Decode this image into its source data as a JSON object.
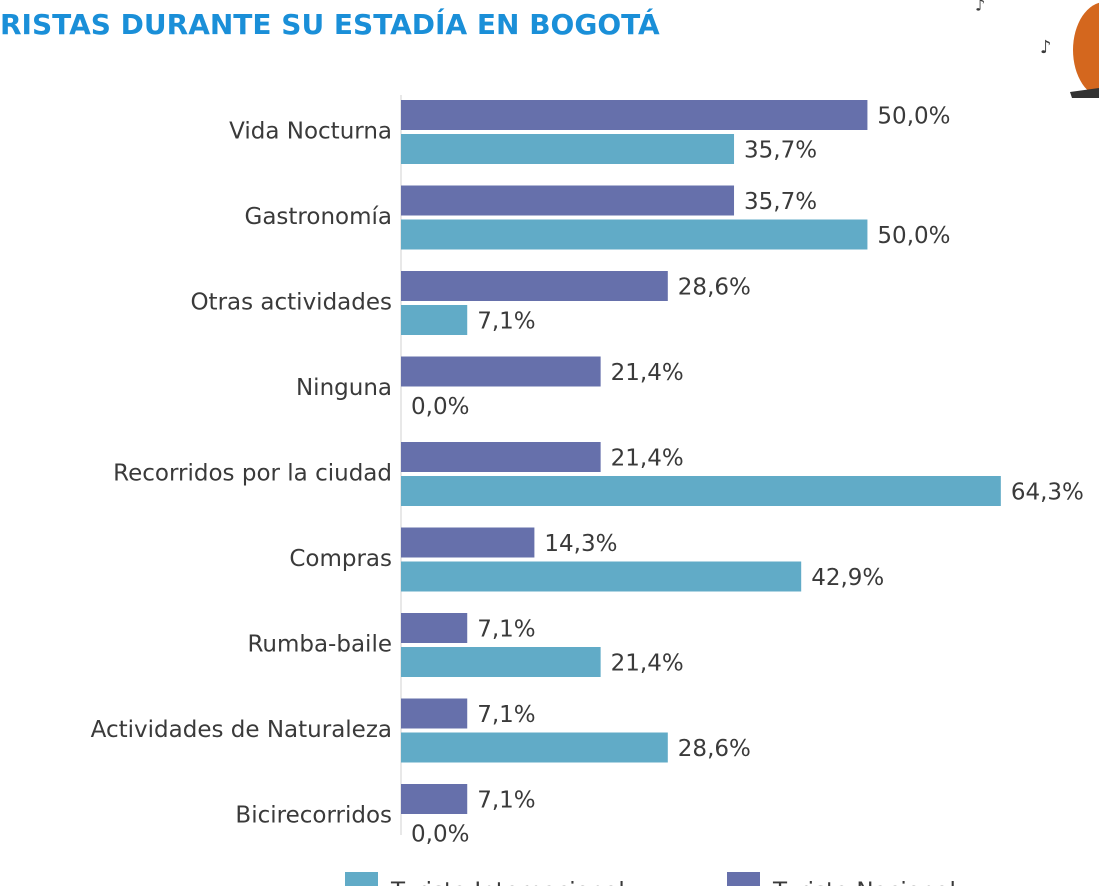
{
  "chart_data": {
    "type": "bar",
    "orientation": "horizontal",
    "title": "RISTAS DURANTE SU ESTADÍA EN BOGOTÁ",
    "categories": [
      "Vida Nocturna",
      "Gastronomía",
      "Otras actividades",
      "Ninguna",
      "Recorridos por la ciudad",
      "Compras",
      "Rumba-baile",
      "Actividades de Naturaleza",
      "Bicirecorridos"
    ],
    "series": [
      {
        "name": "Turista Internacional",
        "color": "#61abc7",
        "values": [
          35.7,
          50.0,
          7.1,
          0.0,
          64.3,
          42.9,
          21.4,
          28.6,
          0.0
        ],
        "value_labels": [
          "35,7%",
          "50,0%",
          "7,1%",
          "0,0%",
          "64,3%",
          "42,9%",
          "21,4%",
          "28,6%",
          "0,0%"
        ]
      },
      {
        "name": "Turista Nacional",
        "color": "#6670ab",
        "values": [
          50.0,
          35.7,
          28.6,
          21.4,
          21.4,
          14.3,
          7.1,
          7.1,
          7.1
        ],
        "value_labels": [
          "50,0%",
          "35,7%",
          "28,6%",
          "21,4%",
          "21,4%",
          "14,3%",
          "7,1%",
          "7,1%",
          "7,1%"
        ]
      }
    ],
    "xlim": [
      0,
      70
    ]
  }
}
